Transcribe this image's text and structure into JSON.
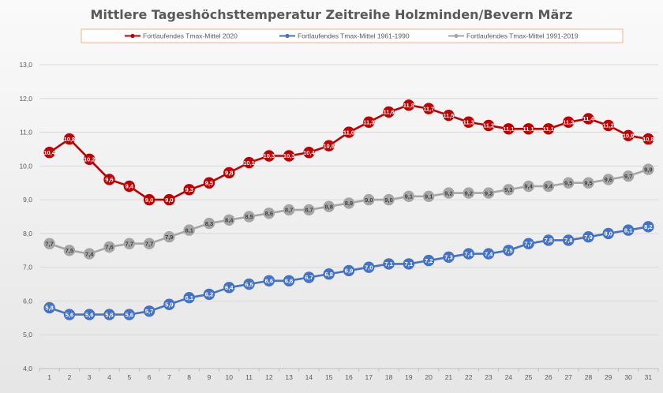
{
  "chart_data": {
    "type": "line",
    "title": "Mittlere Tageshöchsttemperatur Zeitreihe Holzminden/Bevern März",
    "xlabel": "",
    "ylabel": "",
    "ylim": [
      4.0,
      13.0
    ],
    "yticks": [
      "4,0",
      "5,0",
      "6,0",
      "7,0",
      "8,0",
      "9,0",
      "10,0",
      "11,0",
      "12,0",
      "13,0"
    ],
    "yticks_values": [
      4,
      5,
      6,
      7,
      8,
      9,
      10,
      11,
      12,
      13
    ],
    "grid": true,
    "legend_position": "top",
    "x": [
      1,
      2,
      3,
      4,
      5,
      6,
      7,
      8,
      9,
      10,
      11,
      12,
      13,
      14,
      15,
      16,
      17,
      18,
      19,
      20,
      21,
      22,
      23,
      24,
      25,
      26,
      27,
      28,
      29,
      30,
      31
    ],
    "series": [
      {
        "name": "Fortlaufendes Tmax-Mittel 2020",
        "color": "#c00000",
        "values": [
          10.4,
          10.8,
          10.2,
          9.6,
          9.4,
          9.0,
          9.0,
          9.3,
          9.5,
          9.8,
          10.1,
          10.3,
          10.3,
          10.4,
          10.6,
          11.0,
          11.3,
          11.6,
          11.8,
          11.7,
          11.5,
          11.3,
          11.2,
          11.1,
          11.1,
          11.1,
          11.3,
          11.4,
          11.2,
          10.9,
          10.8
        ],
        "labels": [
          "10,4",
          "10,8",
          "10,2",
          "9,6",
          "9,4",
          "9,0",
          "9,0",
          "9,3",
          "9,5",
          "9,8",
          "10,1",
          "10,3",
          "10,3",
          "10,4",
          "10,6",
          "11,0",
          "11,3",
          "11,6",
          "11,8",
          "11,7",
          "11,5",
          "11,3",
          "11,2",
          "11,1",
          "11,1",
          "11,1",
          "11,3",
          "11,4",
          "11,2",
          "10,9",
          "10,8"
        ]
      },
      {
        "name": "Fortlaufendes Tmax-Mittel 1961-1990",
        "color": "#4472c4",
        "values": [
          5.8,
          5.6,
          5.6,
          5.6,
          5.6,
          5.7,
          5.9,
          6.1,
          6.2,
          6.4,
          6.5,
          6.6,
          6.6,
          6.7,
          6.8,
          6.9,
          7.0,
          7.1,
          7.1,
          7.2,
          7.3,
          7.4,
          7.4,
          7.5,
          7.7,
          7.8,
          7.8,
          7.9,
          8.0,
          8.1,
          8.2
        ],
        "labels": [
          "5,8",
          "5,6",
          "5,6",
          "5,6",
          "5,6",
          "5,7",
          "5,9",
          "6,1",
          "6,2",
          "6,4",
          "6,5",
          "6,6",
          "6,6",
          "6,7",
          "6,8",
          "6,9",
          "7,0",
          "7,1",
          "7,1",
          "7,2",
          "7,3",
          "7,4",
          "7,4",
          "7,5",
          "7,7",
          "7,8",
          "7,8",
          "7,9",
          "8,0",
          "8,1",
          "8,2"
        ]
      },
      {
        "name": "Fortlaufendes Tmax-Mittel 1991-2019",
        "color": "#a6a6a6",
        "values": [
          7.7,
          7.5,
          7.4,
          7.6,
          7.7,
          7.7,
          7.9,
          8.1,
          8.3,
          8.4,
          8.5,
          8.6,
          8.7,
          8.7,
          8.8,
          8.9,
          9.0,
          9.0,
          9.1,
          9.1,
          9.2,
          9.2,
          9.2,
          9.3,
          9.4,
          9.4,
          9.5,
          9.5,
          9.6,
          9.7,
          9.9
        ],
        "labels": [
          "7,7",
          "7,5",
          "7,4",
          "7,6",
          "7,7",
          "7,7",
          "7,9",
          "8,1",
          "8,3",
          "8,4",
          "8,5",
          "8,6",
          "8,7",
          "8,7",
          "8,8",
          "8,9",
          "9,0",
          "9,0",
          "9,1",
          "9,1",
          "9,2",
          "9,2",
          "9,2",
          "9,3",
          "9,4",
          "9,4",
          "9,5",
          "9,5",
          "9,6",
          "9,7",
          "9,9"
        ]
      }
    ]
  }
}
